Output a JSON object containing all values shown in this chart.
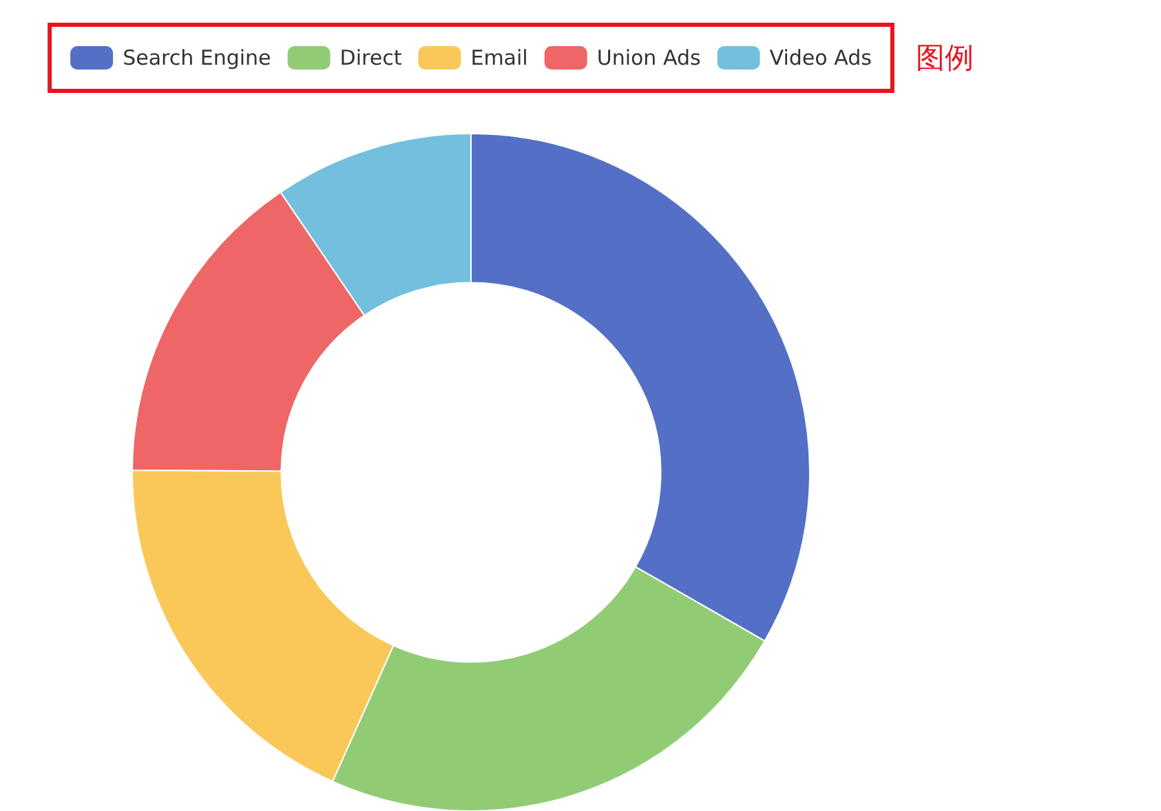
{
  "chart_data": {
    "type": "donut",
    "categories": [
      "Search Engine",
      "Direct",
      "Email",
      "Union Ads",
      "Video Ads"
    ],
    "values": [
      33.3,
      23.4,
      18.4,
      15.4,
      9.5
    ],
    "colors": [
      "#5470c6",
      "#91cc75",
      "#fac858",
      "#ee6666",
      "#73c0de"
    ],
    "legend": "top",
    "annotations": [
      "图例"
    ]
  }
}
